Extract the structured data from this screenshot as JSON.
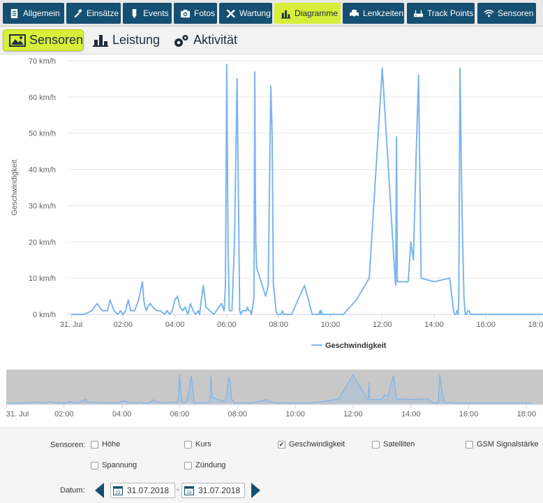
{
  "tabs": [
    {
      "label": "Allgemein",
      "icon": "document-icon"
    },
    {
      "label": "Einsätze",
      "icon": "hammer-icon"
    },
    {
      "label": "Events",
      "icon": "tag-icon"
    },
    {
      "label": "Fotos",
      "icon": "camera-icon"
    },
    {
      "label": "Wartung",
      "icon": "tools-icon"
    },
    {
      "label": "Diagramme",
      "icon": "bar-chart-icon",
      "active": true
    },
    {
      "label": "Lenkzeiten",
      "icon": "car-icon"
    },
    {
      "label": "Track Points",
      "icon": "router-icon"
    },
    {
      "label": "Sensoren",
      "icon": "wifi-icon"
    }
  ],
  "subtabs": [
    {
      "label": "Sensoren",
      "icon": "image-icon",
      "active": true
    },
    {
      "label": "Leistung",
      "icon": "bar-chart-icon"
    },
    {
      "label": "Aktivität",
      "icon": "gears-icon"
    }
  ],
  "chart_data": {
    "type": "line",
    "ylabel": "Geschwindigkeit",
    "ylim": [
      0,
      70
    ],
    "y_ticks": [
      "0 km/h",
      "10 km/h",
      "20 km/h",
      "30 km/h",
      "40 km/h",
      "50 km/h",
      "60 km/h",
      "70 km/h"
    ],
    "x_ticks": [
      "31. Jul",
      "02:00",
      "04:00",
      "06:00",
      "08:00",
      "10:00",
      "12:00",
      "14:00",
      "16:00",
      "18:00"
    ],
    "xlim_hours": [
      0,
      18.2
    ],
    "grid": true,
    "legend_position": "bottom-center",
    "color": "#7cb5ec",
    "series": [
      {
        "name": "Geschwindigkeit",
        "x": [
          0,
          0.5,
          0.8,
          1.0,
          1.2,
          1.4,
          1.5,
          1.65,
          1.8,
          1.9,
          2.0,
          2.1,
          2.2,
          2.3,
          2.45,
          2.6,
          2.75,
          2.8,
          2.85,
          2.9,
          2.95,
          3.05,
          3.15,
          3.3,
          3.45,
          3.6,
          3.7,
          3.8,
          3.9,
          4.0,
          4.1,
          4.2,
          4.3,
          4.4,
          4.5,
          4.6,
          4.7,
          4.8,
          4.9,
          4.95,
          5.0,
          5.1,
          5.2,
          5.35,
          5.5,
          5.6,
          5.7,
          5.8,
          5.9,
          5.95,
          6.0,
          6.05,
          6.1,
          6.2,
          6.3,
          6.4,
          6.5,
          6.55,
          6.6,
          6.65,
          6.75,
          6.8,
          6.85,
          6.9,
          6.95,
          7.0,
          7.05,
          7.08,
          7.1,
          7.12,
          7.15,
          7.5,
          7.6,
          7.7,
          7.75,
          7.8,
          7.85,
          7.9,
          7.95,
          8.0,
          8.05,
          8.1,
          8.15,
          8.2,
          8.3,
          8.5,
          9.0,
          9.3,
          9.45,
          9.55,
          9.6,
          9.62,
          9.65,
          9.68,
          9.72,
          9.75,
          9.8,
          9.85,
          9.9,
          9.95,
          10.0,
          10.05,
          10.1,
          10.15,
          10.5,
          11.0,
          11.5,
          12.0,
          12.5,
          12.52,
          12.55,
          12.58,
          12.6,
          13.0,
          13.1,
          13.2,
          13.3,
          13.4,
          13.5,
          14.0,
          14.6,
          14.75,
          14.8,
          14.85,
          14.87,
          14.9,
          14.93,
          14.95,
          15.0,
          15.05,
          15.1,
          15.15,
          15.2,
          15.25,
          15.3,
          15.35,
          15.4,
          15.5,
          15.55,
          15.6,
          15.65,
          15.7,
          15.75,
          15.8,
          15.85,
          15.9,
          15.95,
          16.0,
          16.1,
          16.2,
          16.4,
          16.5,
          16.55,
          16.6,
          16.65,
          16.7,
          16.75,
          16.8,
          16.9,
          17.0,
          17.1,
          17.2,
          17.4,
          17.6,
          17.8,
          18.0,
          18.2
        ],
        "values": [
          0,
          0,
          1,
          3,
          1,
          1,
          4,
          1,
          0,
          1,
          0,
          1,
          4,
          1,
          1,
          4,
          9,
          4,
          2,
          1,
          2,
          3,
          2,
          1,
          1,
          0,
          1,
          0,
          1,
          4,
          5,
          2,
          1,
          2,
          0,
          3,
          1,
          0,
          1,
          0,
          3,
          8,
          2,
          1,
          0,
          1,
          2,
          3,
          1,
          8,
          69,
          19,
          1,
          1,
          20,
          65,
          1,
          0,
          1,
          1,
          1,
          2,
          1,
          1,
          0,
          2,
          5,
          67,
          40,
          20,
          13,
          5,
          8,
          63,
          50,
          8,
          5,
          1,
          0,
          0,
          0,
          0,
          1,
          0,
          0,
          0,
          8,
          0,
          0,
          0,
          1,
          0,
          1,
          0,
          0,
          0,
          0,
          0,
          0,
          0,
          0,
          0,
          0,
          0,
          0,
          4,
          10,
          68,
          9,
          8,
          49,
          9,
          9,
          9,
          20,
          15,
          42,
          66,
          10,
          9,
          10,
          1,
          0,
          0,
          1,
          1,
          0,
          4,
          68,
          40,
          20,
          5,
          0,
          0,
          1,
          1,
          0,
          0,
          0,
          0,
          0,
          0,
          0,
          0,
          0,
          0,
          0,
          0,
          0,
          0,
          0,
          0,
          0,
          0,
          0,
          0,
          0,
          0,
          0,
          0,
          0,
          0,
          0,
          0,
          0,
          0,
          0
        ]
      }
    ]
  },
  "form": {
    "sensors_label": "Sensoren:",
    "checkboxes": [
      {
        "label": "Höhe",
        "checked": false
      },
      {
        "label": "Kurs",
        "checked": false
      },
      {
        "label": "Geschwindigkeit",
        "checked": true
      },
      {
        "label": "Satelliten",
        "checked": false
      },
      {
        "label": "GSM Signalstärke",
        "checked": false
      },
      {
        "label": "Spannung",
        "checked": false
      },
      {
        "label": "Zündung",
        "checked": false
      }
    ],
    "date_label": "Datum:",
    "date_from": "31.07.2018",
    "date_to": "31.07.2018",
    "date_separator": "-",
    "calendar_day": "23"
  }
}
